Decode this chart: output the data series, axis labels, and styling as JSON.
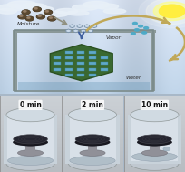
{
  "fig_width": 2.04,
  "fig_height": 1.89,
  "dpi": 100,
  "sky_colors": [
    "#C8DCF0",
    "#A8C8E8",
    "#90B8DC",
    "#A0C4E4",
    "#C0D8EE"
  ],
  "sun_color": "#FFFFC8",
  "sun_glow": "#FFE88080",
  "cloud_color": "#E8EEF4",
  "hexagon_color": "#3A6830",
  "hexagon_edge": "#2A5020",
  "hex_hole_color": "#60A8C8",
  "mof_hex_fill": "#C8D8E8",
  "mof_hex_edge": "#7890A8",
  "moisture_dark": "#483820",
  "moisture_light": "#786848",
  "arrow_tan": "#C0A858",
  "arrow_grey": "#909080",
  "border_col": "#7A8A8A",
  "vapor_text": "#303030",
  "water_text": "#303030",
  "moisture_text": "#303030",
  "time_labels": [
    "0 min",
    "2 min",
    "10 min"
  ],
  "beaker_bg": [
    "#B8C0C8",
    "#B8C0C8",
    "#C0C8D0"
  ],
  "beaker_glass": "#D0D8E0",
  "disk_color": "#252530",
  "disk_edge": "#404048",
  "water_col": "#A8B8C8",
  "pedestal_col": "#A0A8B0",
  "white_box": "#F0F0F0"
}
